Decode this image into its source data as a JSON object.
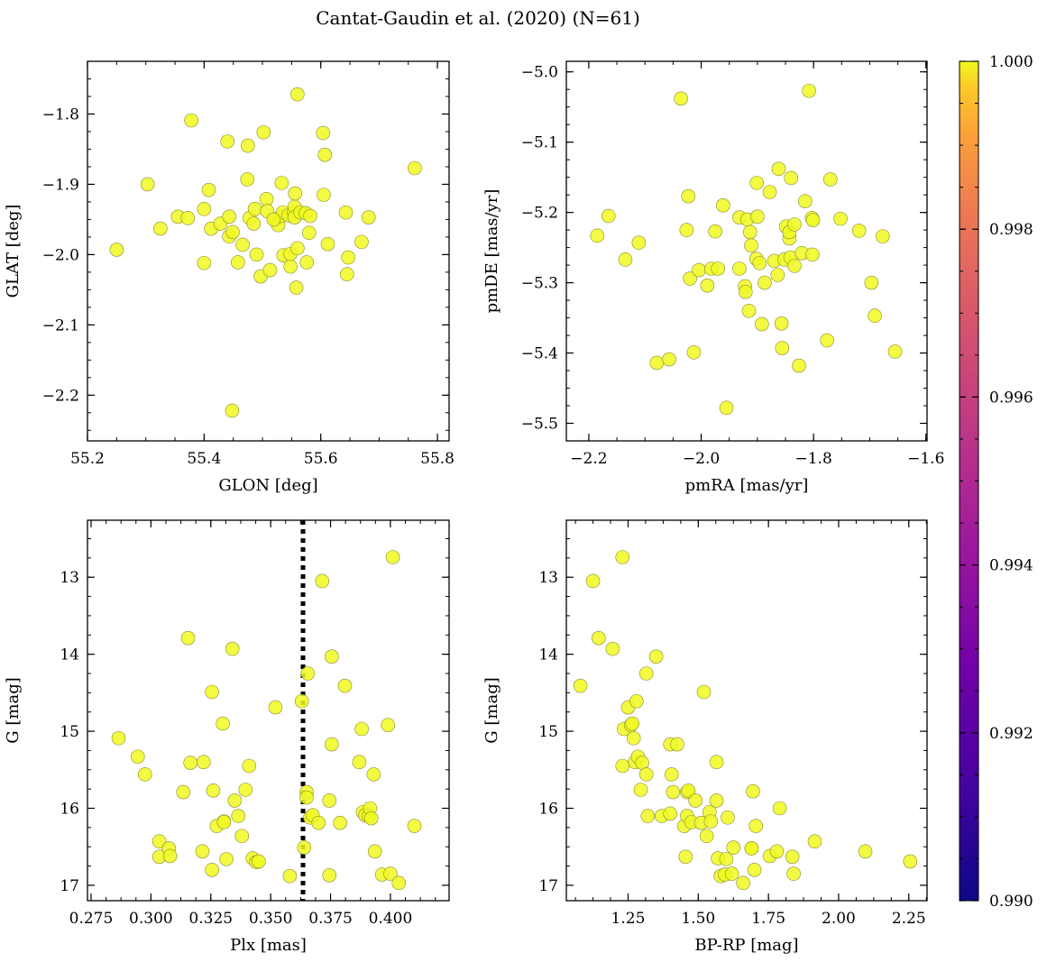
{
  "figure": {
    "title": "Cantat-Gaudin et al. (2020) (N=61)"
  },
  "colorbar": {
    "range": [
      0.99,
      1.0
    ],
    "tick_labels": [
      "0.990",
      "0.992",
      "0.994",
      "0.996",
      "0.998",
      "1.000"
    ],
    "tick_values": [
      0.99,
      0.992,
      0.994,
      0.996,
      0.998,
      1.0
    ],
    "colormap": "plasma",
    "colors": [
      "#0d0887",
      "#6a00a8",
      "#b12a90",
      "#e16462",
      "#fca636",
      "#f0f921"
    ]
  },
  "chart_data": [
    {
      "type": "scatter",
      "xlabel": "GLON [deg]",
      "ylabel": "GLAT [deg]",
      "xlim": [
        55.2,
        55.82
      ],
      "ylim": [
        -2.265,
        -1.725
      ],
      "xticks": [
        55.2,
        55.4,
        55.6,
        55.8
      ],
      "xtick_labels": [
        "55.2",
        "55.4",
        "55.6",
        "55.8"
      ],
      "yticks": [
        -1.8,
        -1.9,
        -2.0,
        -2.1,
        -2.2
      ],
      "ytick_labels": [
        "−1.8",
        "−1.9",
        "−2.0",
        "−2.1",
        "−2.2"
      ],
      "point_color": "#f0f921",
      "points": [
        [
          55.25,
          -1.993
        ],
        [
          55.303,
          -1.9
        ],
        [
          55.325,
          -1.963
        ],
        [
          55.355,
          -1.946
        ],
        [
          55.372,
          -1.948
        ],
        [
          55.378,
          -1.809
        ],
        [
          55.4,
          -1.935
        ],
        [
          55.4,
          -2.012
        ],
        [
          55.408,
          -1.908
        ],
        [
          55.412,
          -1.963
        ],
        [
          55.428,
          -1.956
        ],
        [
          55.44,
          -1.839
        ],
        [
          55.443,
          -1.946
        ],
        [
          55.443,
          -1.974
        ],
        [
          55.448,
          -2.222
        ],
        [
          55.449,
          -1.968
        ],
        [
          55.458,
          -2.011
        ],
        [
          55.466,
          -1.986
        ],
        [
          55.474,
          -1.893
        ],
        [
          55.475,
          -1.845
        ],
        [
          55.478,
          -1.948
        ],
        [
          55.485,
          -1.956
        ],
        [
          55.487,
          -1.935
        ],
        [
          55.49,
          -2.0
        ],
        [
          55.497,
          -2.031
        ],
        [
          55.502,
          -1.826
        ],
        [
          55.507,
          -1.921
        ],
        [
          55.508,
          -1.938
        ],
        [
          55.513,
          -2.022
        ],
        [
          55.522,
          -1.951
        ],
        [
          55.527,
          -1.958
        ],
        [
          55.532,
          -1.945
        ],
        [
          55.533,
          -1.898
        ],
        [
          55.535,
          -1.94
        ],
        [
          55.536,
          -2.001
        ],
        [
          55.545,
          -1.944
        ],
        [
          55.548,
          -2.017
        ],
        [
          55.548,
          -1.999
        ],
        [
          55.554,
          -1.94
        ],
        [
          55.555,
          -1.932
        ],
        [
          55.555,
          -1.947
        ],
        [
          55.556,
          -1.913
        ],
        [
          55.558,
          -2.047
        ],
        [
          55.56,
          -1.772
        ],
        [
          55.56,
          -1.991
        ],
        [
          55.565,
          -1.94
        ],
        [
          55.574,
          -1.941
        ],
        [
          55.576,
          -2.011
        ],
        [
          55.58,
          -1.969
        ],
        [
          55.582,
          -1.945
        ],
        [
          55.604,
          -1.827
        ],
        [
          55.605,
          -1.915
        ],
        [
          55.607,
          -1.858
        ],
        [
          55.612,
          -1.985
        ],
        [
          55.643,
          -1.94
        ],
        [
          55.645,
          -2.028
        ],
        [
          55.647,
          -2.004
        ],
        [
          55.67,
          -1.982
        ],
        [
          55.682,
          -1.947
        ],
        [
          55.761,
          -1.877
        ],
        [
          55.519,
          -1.95
        ]
      ]
    },
    {
      "type": "scatter",
      "xlabel": "pmRA [mas/yr]",
      "ylabel": "pmDE [mas/yr]",
      "xlim": [
        -2.24,
        -1.598
      ],
      "ylim": [
        -5.525,
        -4.985
      ],
      "xticks": [
        -2.2,
        -2.0,
        -1.8,
        -1.6
      ],
      "xtick_labels": [
        "−2.2",
        "−2.0",
        "−1.8",
        "−1.6"
      ],
      "yticks": [
        -5.0,
        -5.1,
        -5.2,
        -5.3,
        -5.4,
        -5.5
      ],
      "ytick_labels": [
        "−5.0",
        "−5.1",
        "−5.2",
        "−5.3",
        "−5.4",
        "−5.5"
      ],
      "point_color": "#f0f921",
      "points": [
        [
          -2.185,
          -5.233
        ],
        [
          -2.165,
          -5.205
        ],
        [
          -2.135,
          -5.267
        ],
        [
          -2.111,
          -5.243
        ],
        [
          -2.079,
          -5.414
        ],
        [
          -2.057,
          -5.409
        ],
        [
          -2.036,
          -5.038
        ],
        [
          -2.026,
          -5.225
        ],
        [
          -2.023,
          -5.177
        ],
        [
          -2.02,
          -5.294
        ],
        [
          -2.013,
          -5.399
        ],
        [
          -2.004,
          -5.282
        ],
        [
          -1.989,
          -5.304
        ],
        [
          -1.982,
          -5.28
        ],
        [
          -1.975,
          -5.227
        ],
        [
          -1.97,
          -5.28
        ],
        [
          -1.961,
          -5.19
        ],
        [
          -1.955,
          -5.478
        ],
        [
          -1.932,
          -5.28
        ],
        [
          -1.932,
          -5.207
        ],
        [
          -1.922,
          -5.305
        ],
        [
          -1.921,
          -5.313
        ],
        [
          -1.918,
          -5.21
        ],
        [
          -1.915,
          -5.34
        ],
        [
          -1.913,
          -5.228
        ],
        [
          -1.911,
          -5.247
        ],
        [
          -1.902,
          -5.266
        ],
        [
          -1.901,
          -5.158
        ],
        [
          -1.9,
          -5.206
        ],
        [
          -1.896,
          -5.272
        ],
        [
          -1.892,
          -5.359
        ],
        [
          -1.887,
          -5.3
        ],
        [
          -1.878,
          -5.171
        ],
        [
          -1.87,
          -5.269
        ],
        [
          -1.864,
          -5.289
        ],
        [
          -1.862,
          -5.138
        ],
        [
          -1.857,
          -5.358
        ],
        [
          -1.856,
          -5.393
        ],
        [
          -1.852,
          -5.267
        ],
        [
          -1.849,
          -5.22
        ],
        [
          -1.843,
          -5.237
        ],
        [
          -1.843,
          -5.228
        ],
        [
          -1.841,
          -5.264
        ],
        [
          -1.84,
          -5.151
        ],
        [
          -1.834,
          -5.276
        ],
        [
          -1.834,
          -5.217
        ],
        [
          -1.826,
          -5.418
        ],
        [
          -1.821,
          -5.258
        ],
        [
          -1.815,
          -5.184
        ],
        [
          -1.808,
          -5.027
        ],
        [
          -1.803,
          -5.208
        ],
        [
          -1.802,
          -5.26
        ],
        [
          -1.801,
          -5.211
        ],
        [
          -1.776,
          -5.382
        ],
        [
          -1.77,
          -5.153
        ],
        [
          -1.752,
          -5.209
        ],
        [
          -1.719,
          -5.226
        ],
        [
          -1.697,
          -5.3
        ],
        [
          -1.691,
          -5.347
        ],
        [
          -1.677,
          -5.234
        ],
        [
          -1.655,
          -5.398
        ]
      ]
    },
    {
      "type": "scatter",
      "xlabel": "Plx [mas]",
      "ylabel": "G [mag]",
      "xlim": [
        0.2735,
        0.4245
      ],
      "ylim": [
        17.2,
        12.26
      ],
      "y_inverted": true,
      "xticks": [
        0.275,
        0.3,
        0.325,
        0.35,
        0.375,
        0.4
      ],
      "xtick_labels": [
        "0.275",
        "0.300",
        "0.325",
        "0.350",
        "0.375",
        "0.400"
      ],
      "yticks": [
        13,
        14,
        15,
        16,
        17
      ],
      "ytick_labels": [
        "13",
        "14",
        "15",
        "16",
        "17"
      ],
      "vline": {
        "x": 0.3635,
        "style": "dotted"
      },
      "point_color": "#f0f921",
      "points": [
        [
          0.2865,
          15.09
        ],
        [
          0.2945,
          15.33
        ],
        [
          0.2975,
          15.56
        ],
        [
          0.3035,
          16.43
        ],
        [
          0.3035,
          16.63
        ],
        [
          0.3075,
          16.52
        ],
        [
          0.308,
          16.62
        ],
        [
          0.3135,
          15.79
        ],
        [
          0.3155,
          13.79
        ],
        [
          0.3165,
          15.41
        ],
        [
          0.3215,
          16.56
        ],
        [
          0.322,
          15.4
        ],
        [
          0.3255,
          16.8
        ],
        [
          0.3255,
          14.49
        ],
        [
          0.326,
          15.77
        ],
        [
          0.3275,
          16.23
        ],
        [
          0.33,
          14.9
        ],
        [
          0.3305,
          16.17
        ],
        [
          0.3315,
          16.66
        ],
        [
          0.334,
          13.93
        ],
        [
          0.335,
          15.9
        ],
        [
          0.3365,
          16.1
        ],
        [
          0.338,
          16.36
        ],
        [
          0.3395,
          15.76
        ],
        [
          0.341,
          15.45
        ],
        [
          0.3425,
          16.65
        ],
        [
          0.344,
          16.7
        ],
        [
          0.345,
          16.69
        ],
        [
          0.352,
          14.69
        ],
        [
          0.358,
          16.88
        ],
        [
          0.363,
          14.61
        ],
        [
          0.364,
          16.51
        ],
        [
          0.365,
          15.79
        ],
        [
          0.365,
          15.86
        ],
        [
          0.3655,
          14.25
        ],
        [
          0.3665,
          16.12
        ],
        [
          0.3675,
          16.09
        ],
        [
          0.37,
          16.19
        ],
        [
          0.3715,
          13.05
        ],
        [
          0.3745,
          16.87
        ],
        [
          0.3745,
          15.9
        ],
        [
          0.3755,
          14.03
        ],
        [
          0.3755,
          15.17
        ],
        [
          0.379,
          16.19
        ],
        [
          0.381,
          14.41
        ],
        [
          0.387,
          15.4
        ],
        [
          0.388,
          14.97
        ],
        [
          0.3885,
          16.05
        ],
        [
          0.3895,
          16.09
        ],
        [
          0.391,
          16.1
        ],
        [
          0.3915,
          16.0
        ],
        [
          0.392,
          16.13
        ],
        [
          0.393,
          15.56
        ],
        [
          0.3935,
          16.56
        ],
        [
          0.3965,
          16.86
        ],
        [
          0.399,
          14.92
        ],
        [
          0.4,
          16.85
        ],
        [
          0.401,
          12.74
        ],
        [
          0.4035,
          16.97
        ],
        [
          0.41,
          16.23
        ],
        [
          0.3305,
          16.18
        ]
      ]
    },
    {
      "type": "scatter",
      "xlabel": "BP-RP [mag]",
      "ylabel": "G [mag]",
      "xlim": [
        1.03,
        2.315
      ],
      "ylim": [
        17.2,
        12.26
      ],
      "y_inverted": true,
      "xticks": [
        1.25,
        1.5,
        1.75,
        2.0,
        2.25
      ],
      "xtick_labels": [
        "1.25",
        "1.50",
        "1.75",
        "2.00",
        "2.25"
      ],
      "yticks": [
        13,
        14,
        15,
        16,
        17
      ],
      "ytick_labels": [
        "13",
        "14",
        "15",
        "16",
        "17"
      ],
      "point_color": "#f0f921",
      "points": [
        [
          1.08,
          14.41
        ],
        [
          1.125,
          13.05
        ],
        [
          1.145,
          13.79
        ],
        [
          1.195,
          13.93
        ],
        [
          1.23,
          12.74
        ],
        [
          1.23,
          15.45
        ],
        [
          1.235,
          14.97
        ],
        [
          1.25,
          14.69
        ],
        [
          1.26,
          14.92
        ],
        [
          1.265,
          14.9
        ],
        [
          1.27,
          15.09
        ],
        [
          1.275,
          15.4
        ],
        [
          1.28,
          14.61
        ],
        [
          1.285,
          15.33
        ],
        [
          1.295,
          15.76
        ],
        [
          1.3,
          15.41
        ],
        [
          1.315,
          14.25
        ],
        [
          1.315,
          15.56
        ],
        [
          1.32,
          16.1
        ],
        [
          1.35,
          14.03
        ],
        [
          1.37,
          16.1
        ],
        [
          1.4,
          15.17
        ],
        [
          1.4,
          16.07
        ],
        [
          1.405,
          15.56
        ],
        [
          1.41,
          15.79
        ],
        [
          1.425,
          15.17
        ],
        [
          1.45,
          16.23
        ],
        [
          1.455,
          16.63
        ],
        [
          1.46,
          16.1
        ],
        [
          1.46,
          15.79
        ],
        [
          1.465,
          15.77
        ],
        [
          1.475,
          16.18
        ],
        [
          1.49,
          15.9
        ],
        [
          1.51,
          16.19
        ],
        [
          1.52,
          14.49
        ],
        [
          1.53,
          16.36
        ],
        [
          1.54,
          16.05
        ],
        [
          1.545,
          16.17
        ],
        [
          1.565,
          15.9
        ],
        [
          1.565,
          15.4
        ],
        [
          1.57,
          16.65
        ],
        [
          1.58,
          16.88
        ],
        [
          1.595,
          16.86
        ],
        [
          1.6,
          16.66
        ],
        [
          1.605,
          16.12
        ],
        [
          1.625,
          16.51
        ],
        [
          1.62,
          16.85
        ],
        [
          1.66,
          16.97
        ],
        [
          1.69,
          16.52
        ],
        [
          1.695,
          15.78
        ],
        [
          1.7,
          16.8
        ],
        [
          1.705,
          16.23
        ],
        [
          1.755,
          16.62
        ],
        [
          1.78,
          16.56
        ],
        [
          1.79,
          16.0
        ],
        [
          1.835,
          16.63
        ],
        [
          1.84,
          16.85
        ],
        [
          1.915,
          16.43
        ],
        [
          2.095,
          16.56
        ],
        [
          2.255,
          16.69
        ],
        [
          1.69,
          16.52
        ]
      ]
    }
  ]
}
